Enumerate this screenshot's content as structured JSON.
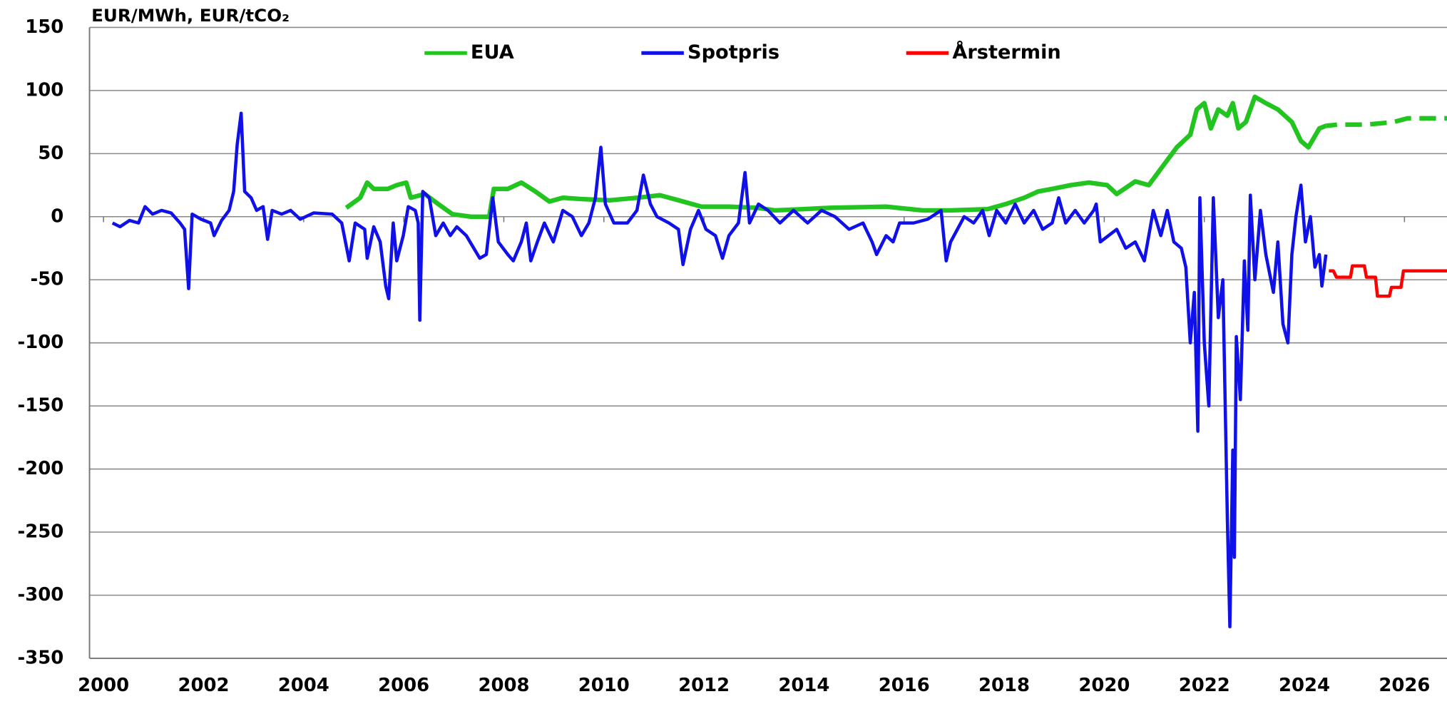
{
  "chart_data": {
    "type": "line",
    "y_axis_title": "EUR/MWh, EUR/tCO₂",
    "xlim": [
      1999.72,
      2026.85
    ],
    "xticks": [
      2000,
      2002,
      2004,
      2006,
      2008,
      2010,
      2012,
      2014,
      2016,
      2018,
      2020,
      2022,
      2024,
      2026
    ],
    "ylim": [
      -350,
      150
    ],
    "yticks": [
      -350,
      -300,
      -250,
      -200,
      -150,
      -100,
      -50,
      0,
      50,
      100,
      150
    ],
    "grid": true,
    "legend": "top",
    "series": [
      {
        "name": "EUA",
        "color": "#22c41f",
        "width": 5,
        "dashed_from": 2024.43,
        "x": [
          2004.85,
          2005.13,
          2005.27,
          2005.4,
          2005.68,
          2005.86,
          2006.05,
          2006.14,
          2006.42,
          2006.69,
          2006.97,
          2007.34,
          2007.71,
          2007.8,
          2008.08,
          2008.35,
          2008.63,
          2008.91,
          2009.18,
          2009.55,
          2010.11,
          2010.66,
          2011.12,
          2011.58,
          2011.95,
          2012.5,
          2013.06,
          2013.42,
          2013.98,
          2014.53,
          2015.64,
          2016.37,
          2016.93,
          2017.67,
          2018.03,
          2018.4,
          2018.68,
          2018.96,
          2019.33,
          2019.69,
          2020.06,
          2020.25,
          2020.62,
          2020.89,
          2021.17,
          2021.45,
          2021.72,
          2021.85,
          2022.0,
          2022.13,
          2022.28,
          2022.46,
          2022.57,
          2022.68,
          2022.83,
          2023.01,
          2023.23,
          2023.47,
          2023.75,
          2023.93,
          2024.08,
          2024.3,
          2024.43,
          2024.67,
          2025.23,
          2025.78,
          2026.06,
          2026.85
        ],
        "values": [
          7,
          15,
          27,
          22,
          22,
          25,
          27,
          15,
          18,
          10,
          2,
          0,
          0,
          22,
          22,
          27,
          20,
          12,
          15,
          14,
          13,
          15,
          17,
          12,
          8,
          8,
          7,
          5,
          6,
          7,
          8,
          5,
          5,
          6,
          10,
          15,
          20,
          22,
          25,
          27,
          25,
          18,
          28,
          25,
          40,
          55,
          65,
          85,
          90,
          70,
          85,
          80,
          90,
          70,
          75,
          95,
          90,
          85,
          75,
          60,
          55,
          70,
          72,
          73,
          73,
          75,
          78,
          78
        ]
      },
      {
        "name": "Spotpris",
        "color": "#1010e8",
        "width": 3.5,
        "x": [
          2000.18,
          2000.33,
          2000.52,
          2000.7,
          2000.83,
          2000.98,
          2001.16,
          2001.35,
          2001.53,
          2001.62,
          2001.7,
          2001.77,
          2001.95,
          2002.14,
          2002.21,
          2002.36,
          2002.51,
          2002.6,
          2002.67,
          2002.75,
          2002.82,
          2002.95,
          2003.06,
          2003.19,
          2003.28,
          2003.37,
          2003.56,
          2003.74,
          2003.93,
          2004.2,
          2004.57,
          2004.76,
          2004.91,
          2005.03,
          2005.22,
          2005.27,
          2005.4,
          2005.53,
          2005.64,
          2005.7,
          2005.79,
          2005.86,
          2005.99,
          2006.09,
          2006.23,
          2006.29,
          2006.32,
          2006.38,
          2006.51,
          2006.64,
          2006.79,
          2006.93,
          2007.06,
          2007.25,
          2007.52,
          2007.65,
          2007.78,
          2007.89,
          2008.08,
          2008.19,
          2008.35,
          2008.45,
          2008.54,
          2008.67,
          2008.81,
          2008.99,
          2009.18,
          2009.37,
          2009.55,
          2009.7,
          2009.83,
          2009.94,
          2010.03,
          2010.2,
          2010.47,
          2010.66,
          2010.79,
          2010.93,
          2011.06,
          2011.3,
          2011.49,
          2011.58,
          2011.73,
          2011.89,
          2012.04,
          2012.23,
          2012.37,
          2012.5,
          2012.69,
          2012.82,
          2012.91,
          2013.09,
          2013.28,
          2013.52,
          2013.79,
          2014.07,
          2014.35,
          2014.62,
          2014.9,
          2015.18,
          2015.36,
          2015.45,
          2015.64,
          2015.78,
          2015.91,
          2016.19,
          2016.47,
          2016.74,
          2016.84,
          2016.93,
          2017.2,
          2017.39,
          2017.57,
          2017.7,
          2017.85,
          2018.03,
          2018.22,
          2018.4,
          2018.59,
          2018.77,
          2018.96,
          2019.09,
          2019.23,
          2019.42,
          2019.6,
          2019.79,
          2019.84,
          2019.92,
          2020.25,
          2020.43,
          2020.62,
          2020.8,
          2020.98,
          2021.13,
          2021.26,
          2021.39,
          2021.54,
          2021.63,
          2021.72,
          2021.8,
          2021.87,
          2021.91,
          2022.0,
          2022.09,
          2022.18,
          2022.28,
          2022.37,
          2022.46,
          2022.51,
          2022.57,
          2022.6,
          2022.64,
          2022.72,
          2022.8,
          2022.87,
          2022.92,
          2023.01,
          2023.12,
          2023.23,
          2023.38,
          2023.47,
          2023.57,
          2023.67,
          2023.75,
          2023.83,
          2023.93,
          2024.02,
          2024.12,
          2024.21,
          2024.3,
          2024.35,
          2024.43
        ],
        "values": [
          -5,
          -8,
          -3,
          -5,
          8,
          2,
          5,
          3,
          -5,
          -10,
          -57,
          2,
          -2,
          -5,
          -15,
          -3,
          5,
          20,
          57,
          82,
          20,
          15,
          5,
          8,
          -18,
          5,
          2,
          5,
          -2,
          3,
          2,
          -5,
          -35,
          -5,
          -10,
          -33,
          -8,
          -20,
          -55,
          -65,
          -5,
          -35,
          -15,
          8,
          5,
          -5,
          -82,
          20,
          15,
          -15,
          -5,
          -15,
          -8,
          -15,
          -33,
          -30,
          15,
          -20,
          -30,
          -35,
          -20,
          -5,
          -35,
          -20,
          -5,
          -20,
          5,
          0,
          -15,
          -5,
          15,
          55,
          10,
          -5,
          -5,
          5,
          33,
          10,
          0,
          -5,
          -10,
          -38,
          -10,
          5,
          -10,
          -15,
          -33,
          -15,
          -5,
          35,
          -5,
          10,
          5,
          -5,
          5,
          -5,
          5,
          0,
          -10,
          -5,
          -20,
          -30,
          -15,
          -20,
          -5,
          -5,
          -2,
          5,
          -35,
          -20,
          0,
          -5,
          5,
          -15,
          5,
          -5,
          10,
          -5,
          5,
          -10,
          -5,
          15,
          -5,
          5,
          -5,
          5,
          10,
          -20,
          -10,
          -25,
          -20,
          -35,
          5,
          -15,
          5,
          -20,
          -25,
          -40,
          -100,
          -60,
          -170,
          15,
          -100,
          -150,
          15,
          -80,
          -50,
          -240,
          -325,
          -185,
          -270,
          -95,
          -145,
          -35,
          -90,
          17,
          -50,
          5,
          -30,
          -60,
          -20,
          -85,
          -100,
          -30,
          0,
          25,
          -20,
          0,
          -40,
          -30,
          -55,
          -30
        ]
      },
      {
        "name": "Årstermin",
        "color": "#ff0000",
        "width": 3.5,
        "x": [
          2024.49,
          2024.58,
          2024.64,
          2024.92,
          2024.96,
          2025.2,
          2025.24,
          2025.42,
          2025.46,
          2025.7,
          2025.74,
          2025.93,
          2025.98,
          2026.85
        ],
        "values": [
          -43,
          -43,
          -48,
          -48,
          -39,
          -39,
          -48,
          -48,
          -63,
          -63,
          -56,
          -56,
          -43,
          -43
        ]
      }
    ]
  }
}
